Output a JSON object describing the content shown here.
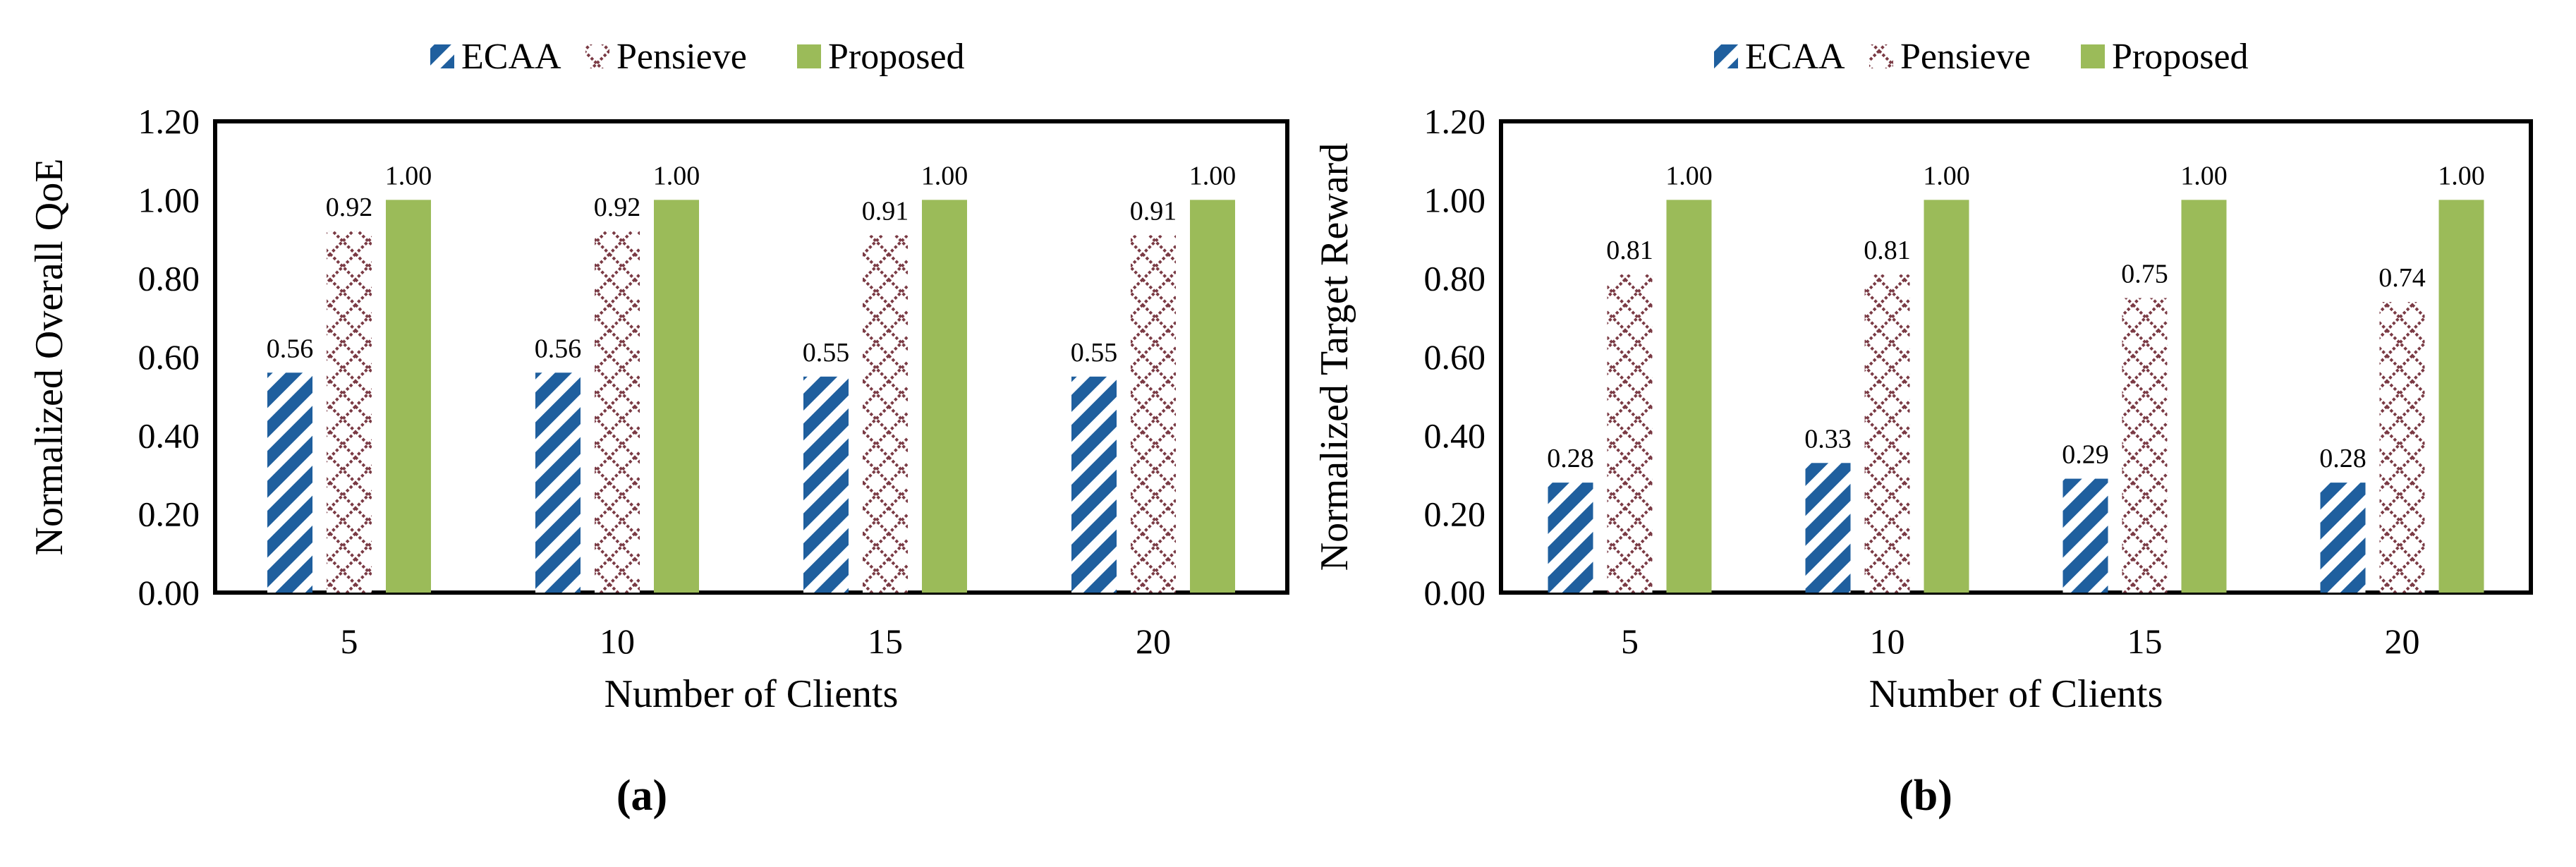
{
  "colors": {
    "ecaa": "#1f5f9e",
    "pensieve": "#7a3a44",
    "proposed": "#9bbb59",
    "frame": "#000000"
  },
  "chart_data": [
    {
      "id": "a",
      "panel_label": "(a)",
      "type": "bar",
      "title": "",
      "xlabel": "Number of Clients",
      "ylabel": "Normalized Overall QoE",
      "categories": [
        "5",
        "10",
        "15",
        "20"
      ],
      "ylim": [
        0,
        1.2
      ],
      "yticks": [
        "0.00",
        "0.20",
        "0.40",
        "0.60",
        "0.80",
        "1.00",
        "1.20"
      ],
      "legend_position": "top",
      "series": [
        {
          "name": "ECAA",
          "pattern": "diagonal",
          "values": [
            0.56,
            0.56,
            0.55,
            0.55
          ],
          "labels": [
            "0.56",
            "0.56",
            "0.55",
            "0.55"
          ]
        },
        {
          "name": "Pensieve",
          "pattern": "crosshatch",
          "values": [
            0.92,
            0.92,
            0.91,
            0.91
          ],
          "labels": [
            "0.92",
            "0.92",
            "0.91",
            "0.91"
          ]
        },
        {
          "name": "Proposed",
          "pattern": "solid",
          "values": [
            1.0,
            1.0,
            1.0,
            1.0
          ],
          "labels": [
            "1.00",
            "1.00",
            "1.00",
            "1.00"
          ]
        }
      ]
    },
    {
      "id": "b",
      "panel_label": "(b)",
      "type": "bar",
      "title": "",
      "xlabel": "Number of Clients",
      "ylabel": "Normalized Target Reward",
      "categories": [
        "5",
        "10",
        "15",
        "20"
      ],
      "ylim": [
        0,
        1.2
      ],
      "yticks": [
        "0.00",
        "0.20",
        "0.40",
        "0.60",
        "0.80",
        "1.00",
        "1.20"
      ],
      "legend_position": "top",
      "series": [
        {
          "name": "ECAA",
          "pattern": "diagonal",
          "values": [
            0.28,
            0.33,
            0.29,
            0.28
          ],
          "labels": [
            "0.28",
            "0.33",
            "0.29",
            "0.28"
          ]
        },
        {
          "name": "Pensieve",
          "pattern": "crosshatch",
          "values": [
            0.81,
            0.81,
            0.75,
            0.74
          ],
          "labels": [
            "0.81",
            "0.81",
            "0.75",
            "0.74"
          ]
        },
        {
          "name": "Proposed",
          "pattern": "solid",
          "values": [
            1.0,
            1.0,
            1.0,
            1.0
          ],
          "labels": [
            "1.00",
            "1.00",
            "1.00",
            "1.00"
          ]
        }
      ]
    }
  ]
}
